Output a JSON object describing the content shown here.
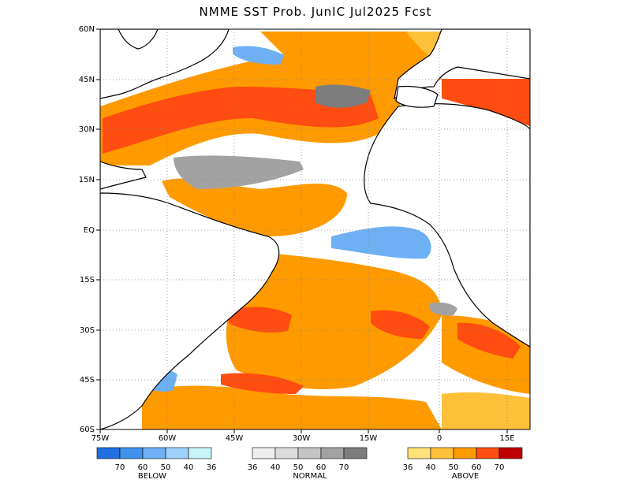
{
  "title": "NMME SST Prob. JunIC   Jul2025 Fcst",
  "y_ticks": [
    "60N",
    "45N",
    "30N",
    "15N",
    "EQ",
    "15S",
    "30S",
    "45S",
    "60S"
  ],
  "x_ticks": [
    "75W",
    "60W",
    "45W",
    "30W",
    "15W",
    "0",
    "15E"
  ],
  "legend": {
    "below": {
      "name": "BELOW",
      "labels": [
        "70",
        "60",
        "50",
        "40",
        "36"
      ],
      "colors": [
        "#1f6fe0",
        "#3f92ee",
        "#6db0f4",
        "#9fd0fa",
        "#c8f4f8"
      ]
    },
    "normal": {
      "name": "NORMAL",
      "labels": [
        "36",
        "40",
        "50",
        "60",
        "70"
      ],
      "colors": [
        "#eeeeee",
        "#dcdcdc",
        "#c4c4c4",
        "#a2a2a2",
        "#7d7d7d"
      ]
    },
    "above": {
      "name": "ABOVE",
      "labels": [
        "36",
        "40",
        "50",
        "60",
        "70"
      ],
      "colors": [
        "#ffe27a",
        "#ffc13a",
        "#ff9a00",
        "#ff4c10",
        "#c00000"
      ]
    }
  }
}
